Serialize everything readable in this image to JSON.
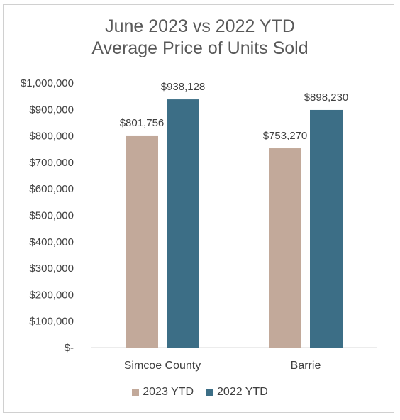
{
  "chart_data": {
    "type": "bar",
    "title_line1": "June 2023 vs 2022 YTD",
    "title_line2": "Average Price of Units Sold",
    "categories": [
      "Simcoe County",
      "Barrie"
    ],
    "series": [
      {
        "name": "2023 YTD",
        "color": "#c2a99a",
        "values": [
          801756,
          753270
        ],
        "labels": [
          "$801,756",
          "$753,270"
        ]
      },
      {
        "name": "2022 YTD",
        "color": "#3c6e86",
        "values": [
          938128,
          898230
        ],
        "labels": [
          "$938,128",
          "$898,230"
        ]
      }
    ],
    "ylim": [
      0,
      1000000
    ],
    "yticks": [
      0,
      100000,
      200000,
      300000,
      400000,
      500000,
      600000,
      700000,
      800000,
      900000,
      1000000
    ],
    "ytick_labels": [
      "$-",
      "$100,000",
      "$200,000",
      "$300,000",
      "$400,000",
      "$500,000",
      "$600,000",
      "$700,000",
      "$800,000",
      "$900,000",
      "$1,000,000"
    ],
    "grid": false,
    "legend_position": "bottom"
  }
}
